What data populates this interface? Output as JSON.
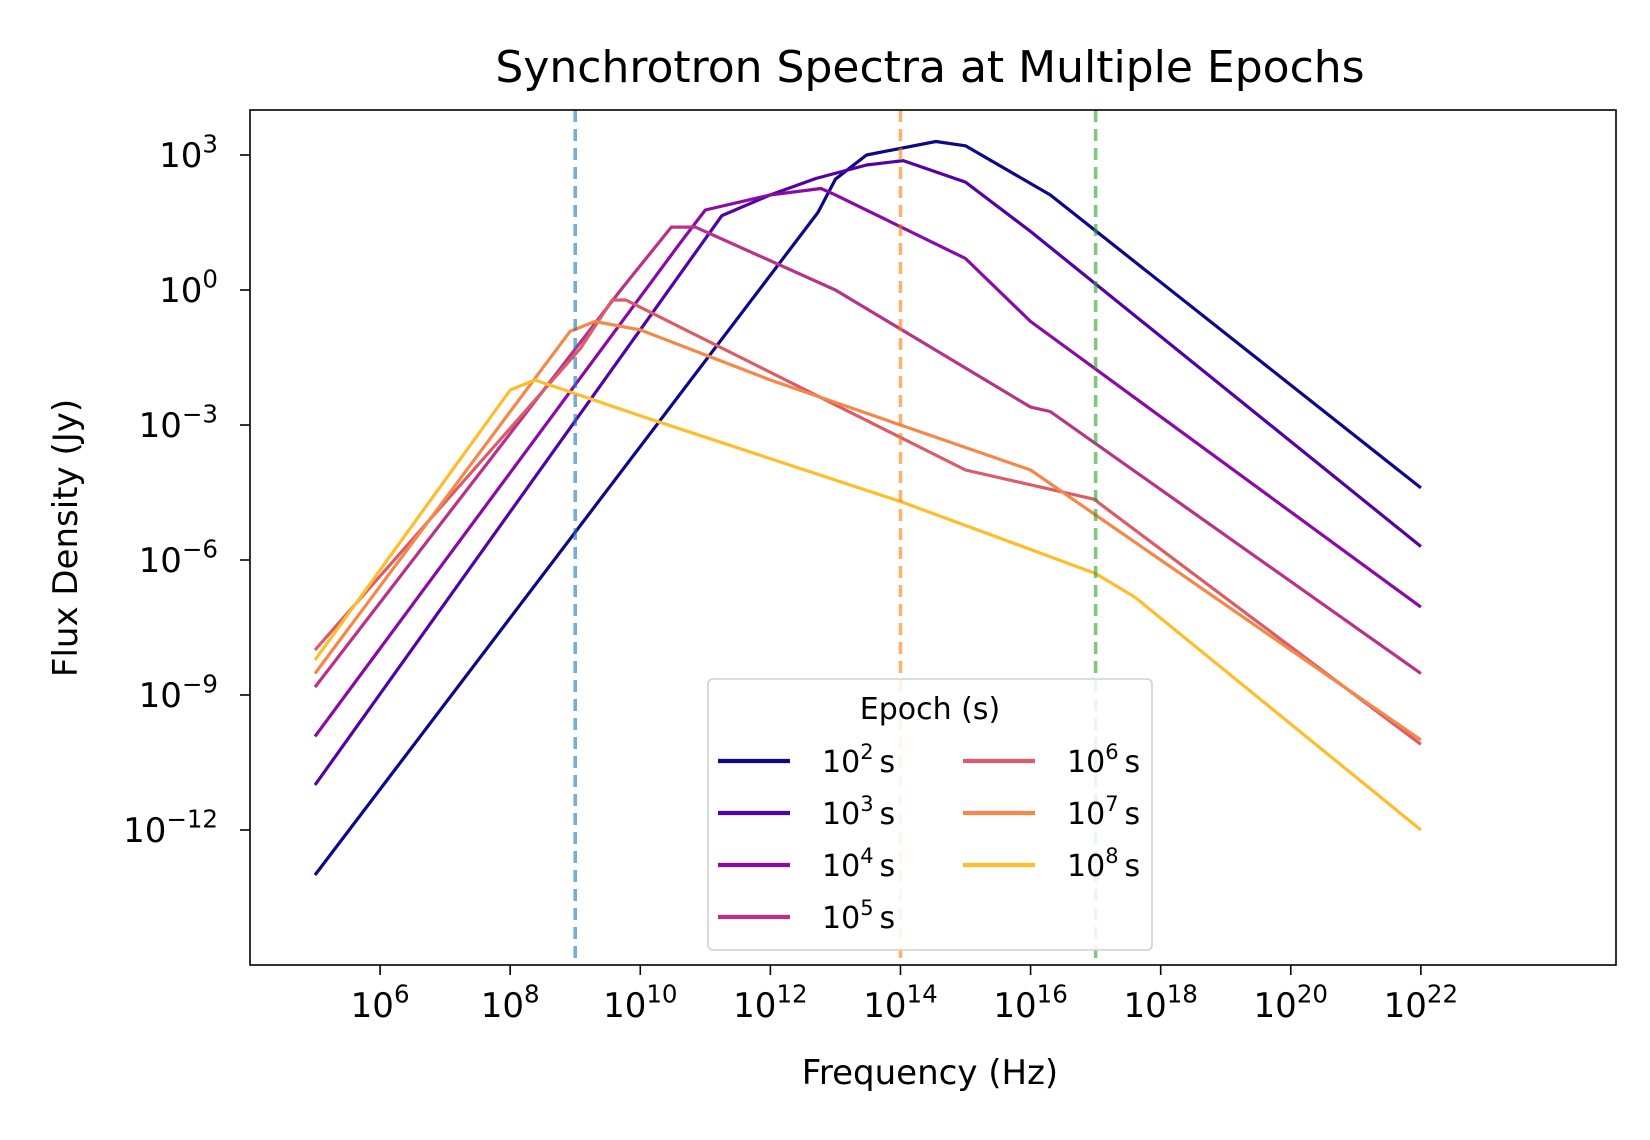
{
  "chart_data": {
    "type": "line",
    "title": "Synchrotron Spectra at Multiple Epochs",
    "xlabel": "Frequency (Hz)",
    "ylabel": "Flux Density (Jy)",
    "xscale": "log",
    "yscale": "log",
    "xlim": [
      10000,
      10000000000000000000000000
    ],
    "ylim": [
      1e-15,
      10000.0
    ],
    "x_ticks": [
      1000000.0,
      100000000.0,
      10000000000.0,
      1000000000000.0,
      100000000000000.0,
      1e+16,
      1e+18,
      1e+20,
      1e+22
    ],
    "x_tick_labels": [
      {
        "base": "10",
        "exp": "6"
      },
      {
        "base": "10",
        "exp": "8"
      },
      {
        "base": "10",
        "exp": "10"
      },
      {
        "base": "10",
        "exp": "12"
      },
      {
        "base": "10",
        "exp": "14"
      },
      {
        "base": "10",
        "exp": "16"
      },
      {
        "base": "10",
        "exp": "18"
      },
      {
        "base": "10",
        "exp": "20"
      },
      {
        "base": "10",
        "exp": "22"
      }
    ],
    "y_ticks": [
      1000.0,
      1,
      0.001,
      1e-06,
      1e-09,
      1e-12
    ],
    "y_tick_labels": [
      {
        "base": "10",
        "exp": "3"
      },
      {
        "base": "10",
        "exp": "0"
      },
      {
        "base": "10",
        "exp": "−3"
      },
      {
        "base": "10",
        "exp": "−6"
      },
      {
        "base": "10",
        "exp": "−9"
      },
      {
        "base": "10",
        "exp": "−12"
      }
    ],
    "grid": false,
    "legend": {
      "title": "Epoch (s)",
      "placement": "lower-center",
      "columns": 2,
      "entries": [
        {
          "base": "10",
          "exp": "2",
          "unit": "s"
        },
        {
          "base": "10",
          "exp": "3",
          "unit": "s"
        },
        {
          "base": "10",
          "exp": "4",
          "unit": "s"
        },
        {
          "base": "10",
          "exp": "5",
          "unit": "s"
        },
        {
          "base": "10",
          "exp": "6",
          "unit": "s"
        },
        {
          "base": "10",
          "exp": "7",
          "unit": "s"
        },
        {
          "base": "10",
          "exp": "8",
          "unit": "s"
        }
      ]
    },
    "reference_lines": [
      {
        "x": 1000000000.0,
        "color": "#1f77b4"
      },
      {
        "x": 100000000000000.0,
        "color": "#ff7f0e"
      },
      {
        "x": 1e+17,
        "color": "#2ca02c"
      }
    ],
    "series": [
      {
        "epoch_s": 100.0,
        "color": "#0d0887",
        "points": [
          [
            100000.0,
            1e-13
          ],
          [
            5400000000000.0,
            53
          ],
          [
            10000000000000.0,
            290
          ],
          [
            30000000000000.0,
            1000
          ],
          [
            350000000000000.0,
            2000
          ],
          [
            1000000000000000.0,
            1600
          ],
          [
            2e+16,
            130
          ],
          [
            1e+22,
            4e-05
          ]
        ]
      },
      {
        "epoch_s": 1000.0,
        "color": "#5302a3",
        "points": [
          [
            100000.0,
            1e-11
          ],
          [
            180000000000.0,
            45
          ],
          [
            1000000000000.0,
            130
          ],
          [
            5000000000000.0,
            300
          ],
          [
            30000000000000.0,
            600
          ],
          [
            110000000000000.0,
            750
          ],
          [
            1000000000000000.0,
            250
          ],
          [
            1e+16,
            20
          ],
          [
            1e+22,
            2e-06
          ]
        ]
      },
      {
        "epoch_s": 10000.0,
        "color": "#8b0aa5",
        "points": [
          [
            100000.0,
            1.2e-10
          ],
          [
            41000000000.0,
            11
          ],
          [
            100000000000.0,
            60
          ],
          [
            1000000000000.0,
            130
          ],
          [
            6000000000000.0,
            180
          ],
          [
            10000000000000.0,
            130
          ],
          [
            1000000000000000.0,
            5
          ],
          [
            1e+16,
            0.2
          ],
          [
            1e+22,
            9e-08
          ]
        ]
      },
      {
        "epoch_s": 100000.0,
        "color": "#b83289",
        "points": [
          [
            100000.0,
            1.5e-09
          ],
          [
            5000000000.0,
            1
          ],
          [
            30000000000.0,
            25
          ],
          [
            70000000000.0,
            25
          ],
          [
            10000000000000.0,
            1
          ],
          [
            1e+16,
            0.0025
          ],
          [
            2e+16,
            0.002
          ],
          [
            1e+22,
            3e-09
          ]
        ]
      },
      {
        "epoch_s": 1000000.0,
        "color": "#db5c68",
        "points": [
          [
            100000.0,
            1e-08
          ],
          [
            1200000000.0,
            0.05
          ],
          [
            3700000000.0,
            0.6
          ],
          [
            6000000000.0,
            0.6
          ],
          [
            1000000000000000.0,
            0.0001
          ],
          [
            1e+17,
            2.2e-05
          ],
          [
            1.1e+17,
            1.9e-05
          ],
          [
            1e+22,
            8e-11
          ]
        ]
      },
      {
        "epoch_s": 10000000.0,
        "color": "#f48849",
        "points": [
          [
            100000.0,
            3e-09
          ],
          [
            830000000.0,
            0.12
          ],
          [
            2000000000.0,
            0.2
          ],
          [
            10000000000.0,
            0.13
          ],
          [
            1000000000000.0,
            0.01
          ],
          [
            100000000000000.0,
            0.001
          ],
          [
            1e+16,
            0.0001
          ],
          [
            1e+17,
            1e-05
          ],
          [
            1e+18,
            1e-06
          ],
          [
            1e+20,
            1e-08
          ],
          [
            1e+22,
            1e-10
          ]
        ]
      },
      {
        "epoch_s": 100000000.0,
        "color": "#febd2a",
        "points": [
          [
            100000.0,
            6e-09
          ],
          [
            100000000.0,
            0.006
          ],
          [
            240000000.0,
            0.01
          ],
          [
            10000000000.0,
            0.0016
          ],
          [
            100000000000000.0,
            2e-05
          ],
          [
            1e+17,
            5e-07
          ],
          [
            4e+17,
            1.5e-07
          ],
          [
            1e+22,
            1e-12
          ]
        ]
      }
    ],
    "legend_colors": [
      "#0d0887",
      "#5302a3",
      "#8b0aa5",
      "#b83289",
      "#db5c68",
      "#f48849",
      "#febd2a"
    ]
  }
}
